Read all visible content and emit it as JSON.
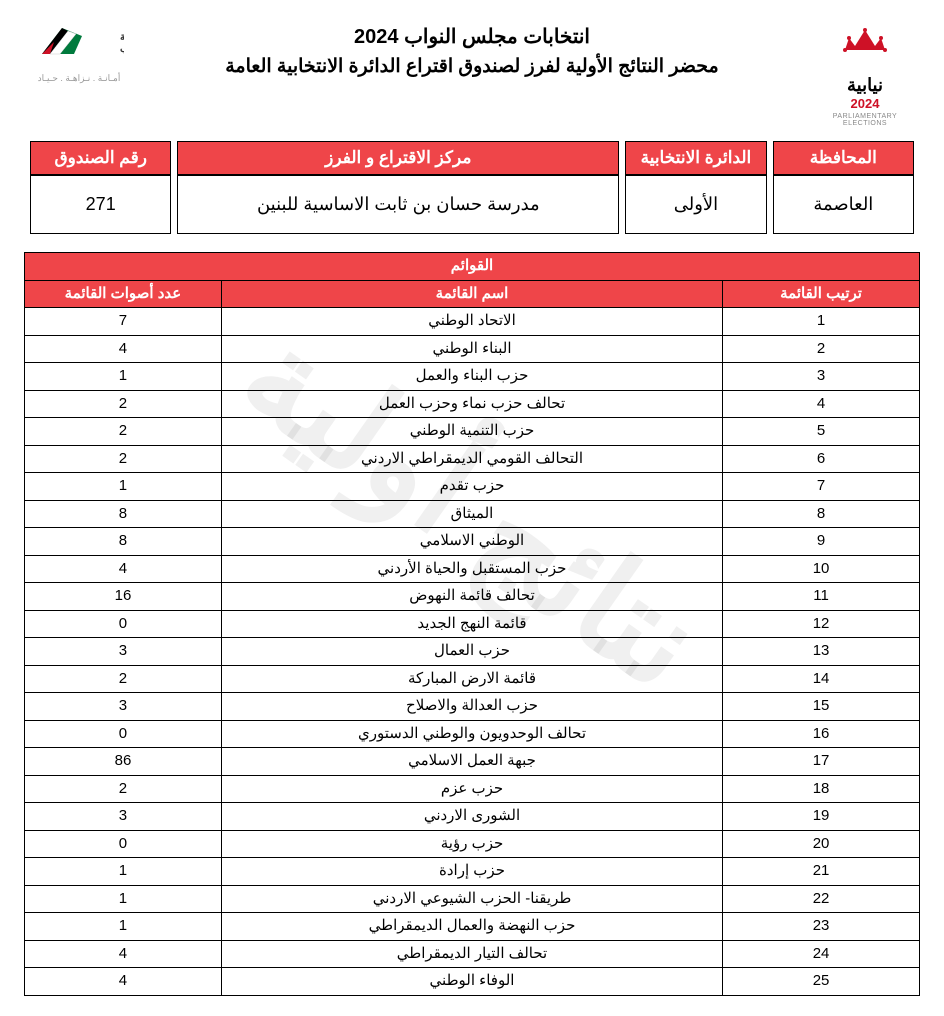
{
  "watermark_text": "نتائج أولية",
  "header": {
    "title1": "انتخابات مجلس النواب 2024",
    "title2": "محضر النتائج الأولية لفرز لصندوق اقتراع الدائرة الانتخابية العامة",
    "logo_right_ar1": "نيابية",
    "logo_right_ar2": "2024",
    "logo_right_en": "PARLIAMENTARY ELECTIONS",
    "logo_left_name": "الهيئة المستقلة للانتخاب",
    "logo_left_motto": "أمـانـة . نـزاهـة . حـيـاد"
  },
  "info": {
    "headers": {
      "governorate": "المحافظة",
      "district": "الدائرة الانتخابية",
      "center": "مركز الاقتراع و الفرز",
      "box": "رقم الصندوق"
    },
    "values": {
      "governorate": "العاصمة",
      "district": "الأولى",
      "center": "مدرسة حسان بن ثابت الاساسية للبنين",
      "box": "271"
    }
  },
  "lists": {
    "section_title": "القوائم",
    "columns": {
      "rank": "ترتيب القائمة",
      "name": "اسم القائمة",
      "votes": "عدد أصوات القائمة"
    },
    "rows": [
      {
        "rank": "1",
        "name": "الاتحاد الوطني",
        "votes": "7"
      },
      {
        "rank": "2",
        "name": "البناء الوطني",
        "votes": "4"
      },
      {
        "rank": "3",
        "name": "حزب البناء والعمل",
        "votes": "1"
      },
      {
        "rank": "4",
        "name": "تحالف حزب نماء وحزب العمل",
        "votes": "2"
      },
      {
        "rank": "5",
        "name": "حزب التنمية الوطني",
        "votes": "2"
      },
      {
        "rank": "6",
        "name": "التحالف القومي الديمقراطي الاردني",
        "votes": "2"
      },
      {
        "rank": "7",
        "name": "حزب تقدم",
        "votes": "1"
      },
      {
        "rank": "8",
        "name": "الميثاق",
        "votes": "8"
      },
      {
        "rank": "9",
        "name": "الوطني الاسلامي",
        "votes": "8"
      },
      {
        "rank": "10",
        "name": "حزب المستقبل والحياة الأردني",
        "votes": "4"
      },
      {
        "rank": "11",
        "name": "تحالف قائمة النهوض",
        "votes": "16"
      },
      {
        "rank": "12",
        "name": "قائمة النهج الجديد",
        "votes": "0"
      },
      {
        "rank": "13",
        "name": "حزب العمال",
        "votes": "3"
      },
      {
        "rank": "14",
        "name": "قائمة الارض المباركة",
        "votes": "2"
      },
      {
        "rank": "15",
        "name": "حزب العدالة والاصلاح",
        "votes": "3"
      },
      {
        "rank": "16",
        "name": "تحالف الوحدويون والوطني الدستوري",
        "votes": "0"
      },
      {
        "rank": "17",
        "name": "جبهة العمل الاسلامي",
        "votes": "86"
      },
      {
        "rank": "18",
        "name": "حزب عزم",
        "votes": "2"
      },
      {
        "rank": "19",
        "name": "الشورى الاردني",
        "votes": "3"
      },
      {
        "rank": "20",
        "name": "حزب رؤية",
        "votes": "0"
      },
      {
        "rank": "21",
        "name": "حزب إرادة",
        "votes": "1"
      },
      {
        "rank": "22",
        "name": "طريقنا- الحزب الشيوعي الاردني",
        "votes": "1"
      },
      {
        "rank": "23",
        "name": "حزب النهضة والعمال الديمقراطي",
        "votes": "1"
      },
      {
        "rank": "24",
        "name": "تحالف التيار الديمقراطي",
        "votes": "4"
      },
      {
        "rank": "25",
        "name": "الوفاء الوطني",
        "votes": "4"
      }
    ]
  },
  "colors": {
    "header_bg": "#ef4549",
    "header_fg": "#ffffff",
    "border": "#000000",
    "accent_red": "#ce1126",
    "accent_green": "#007a3d"
  }
}
